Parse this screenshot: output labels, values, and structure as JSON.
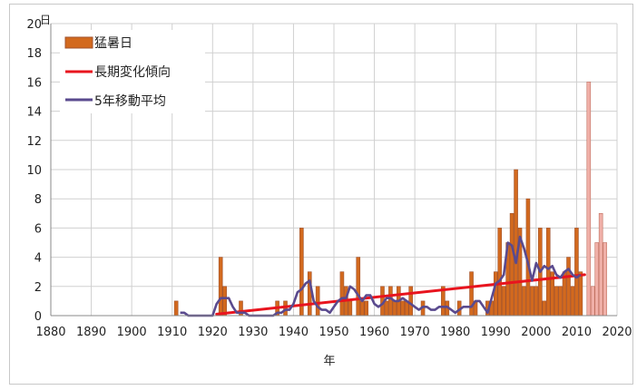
{
  "chart_data": {
    "type": "bar",
    "y_unit": "日",
    "xlabel": "年",
    "xlim": [
      1880,
      2020
    ],
    "ylim": [
      0,
      20
    ],
    "x_ticks": [
      1880,
      1890,
      1900,
      1910,
      1920,
      1930,
      1940,
      1950,
      1960,
      1970,
      1980,
      1990,
      2000,
      2010,
      2020
    ],
    "y_ticks": [
      0,
      2,
      4,
      6,
      8,
      10,
      12,
      14,
      16,
      18,
      20
    ],
    "grid": true,
    "legend_position": "top-left",
    "colors": {
      "bars": "#d2691e",
      "bars_edge": "#a0522d",
      "bars_recent": "#f0b0a8",
      "bars_recent_edge": "#c07060",
      "trend": "#e8141e",
      "moving_average": "#5a4a8e",
      "grid": "#d0d0d0"
    },
    "series": [
      {
        "name": "猛暑日",
        "type": "bar",
        "x": [
          1911,
          1922,
          1923,
          1927,
          1936,
          1938,
          1942,
          1944,
          1946,
          1952,
          1953,
          1954,
          1956,
          1957,
          1958,
          1962,
          1963,
          1964,
          1965,
          1966,
          1967,
          1968,
          1969,
          1972,
          1977,
          1978,
          1981,
          1984,
          1985,
          1988,
          1989,
          1990,
          1991,
          1992,
          1993,
          1994,
          1995,
          1996,
          1997,
          1998,
          1999,
          2000,
          2001,
          2002,
          2003,
          2004,
          2005,
          2006,
          2007,
          2008,
          2009,
          2010,
          2011
        ],
        "values": [
          1,
          4,
          2,
          1,
          1,
          1,
          6,
          3,
          2,
          3,
          2,
          1,
          4,
          1,
          1,
          2,
          1,
          2,
          1,
          2,
          1,
          1,
          2,
          1,
          2,
          1,
          1,
          3,
          1,
          1,
          1,
          3,
          6,
          2,
          5,
          7,
          10,
          6,
          2,
          8,
          2,
          2,
          6,
          1,
          6,
          3,
          2,
          2,
          3,
          4,
          2,
          6,
          3
        ]
      },
      {
        "name": "猛暑日",
        "type": "bar",
        "highlight": "recent",
        "x": [
          2013,
          2014,
          2015,
          2016,
          2017
        ],
        "values": [
          16,
          2,
          5,
          7,
          5
        ]
      },
      {
        "name": "長期変化傾向",
        "type": "line",
        "x": [
          1921,
          2012
        ],
        "values": [
          0.1,
          2.8
        ]
      },
      {
        "name": "5年移動平均",
        "type": "line",
        "x": [
          1912,
          1913,
          1914,
          1915,
          1916,
          1917,
          1918,
          1919,
          1920,
          1921,
          1922,
          1923,
          1924,
          1925,
          1926,
          1927,
          1928,
          1929,
          1930,
          1931,
          1932,
          1933,
          1934,
          1935,
          1936,
          1937,
          1938,
          1939,
          1940,
          1941,
          1942,
          1943,
          1944,
          1945,
          1946,
          1947,
          1948,
          1949,
          1950,
          1951,
          1952,
          1953,
          1954,
          1955,
          1956,
          1957,
          1958,
          1959,
          1960,
          1961,
          1962,
          1963,
          1964,
          1965,
          1966,
          1967,
          1968,
          1969,
          1970,
          1971,
          1972,
          1973,
          1974,
          1975,
          1976,
          1977,
          1978,
          1979,
          1980,
          1981,
          1982,
          1983,
          1984,
          1985,
          1986,
          1987,
          1988,
          1989,
          1990,
          1991,
          1992,
          1993,
          1994,
          1995,
          1996,
          1997,
          1998,
          1999,
          2000,
          2001,
          2002,
          2003,
          2004,
          2005,
          2006,
          2007,
          2008,
          2009,
          2010,
          2011
        ],
        "values": [
          0.2,
          0.2,
          0,
          0,
          0,
          0,
          0,
          0,
          0,
          0.8,
          1.2,
          1.2,
          1.2,
          0.6,
          0.2,
          0.2,
          0.2,
          0,
          0,
          0,
          0,
          0,
          0,
          0,
          0.2,
          0.2,
          0.4,
          0.4,
          0.8,
          1.6,
          1.8,
          2.2,
          2.4,
          1.0,
          0.6,
          0.4,
          0.4,
          0.2,
          0.6,
          1.0,
          1.2,
          1.2,
          2.0,
          1.8,
          1.4,
          1.0,
          1.4,
          1.4,
          0.8,
          0.6,
          0.8,
          1.2,
          1.2,
          1.0,
          1.0,
          1.2,
          1.0,
          0.8,
          0.6,
          0.4,
          0.6,
          0.6,
          0.4,
          0.4,
          0.6,
          0.6,
          0.6,
          0.4,
          0.2,
          0.4,
          0.6,
          0.6,
          0.6,
          1.0,
          1.0,
          0.6,
          0.2,
          1.2,
          2.2,
          2.4,
          2.8,
          5.0,
          4.8,
          3.6,
          5.4,
          4.6,
          3.6,
          2.4,
          3.6,
          3.0,
          3.4,
          3.2,
          3.4,
          2.8,
          2.6,
          3.0,
          3.2,
          2.8,
          2.6,
          2.8
        ]
      }
    ]
  }
}
